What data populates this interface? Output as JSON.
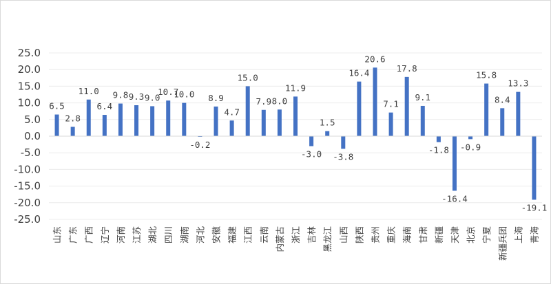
{
  "chart_data": {
    "type": "bar",
    "title": "",
    "xlabel": "",
    "ylabel": "",
    "ylim": [
      -25,
      25
    ],
    "y_ticks": [
      "25.0",
      "20.0",
      "15.0",
      "10.0",
      "5.0",
      "0.0",
      "-5.0",
      "-10.0",
      "-15.0",
      "-20.0",
      "-25.0"
    ],
    "grid": true,
    "bar_color": "#4472c4",
    "categories": [
      "山东",
      "广东",
      "广西",
      "辽宁",
      "河南",
      "江苏",
      "湖北",
      "四川",
      "湖南",
      "河北",
      "安徽",
      "福建",
      "江西",
      "云南",
      "内蒙古",
      "浙江",
      "吉林",
      "黑龙江",
      "山西",
      "陕西",
      "贵州",
      "重庆",
      "海南",
      "甘肃",
      "新疆",
      "天津",
      "北京",
      "宁夏",
      "新疆兵团",
      "上海",
      "青海"
    ],
    "values": [
      6.5,
      2.8,
      11.0,
      6.4,
      9.8,
      9.3,
      9.0,
      10.7,
      10.0,
      -0.2,
      8.9,
      4.7,
      15.0,
      7.9,
      8.0,
      11.9,
      -3.0,
      1.5,
      -3.8,
      16.4,
      20.6,
      7.1,
      17.8,
      9.1,
      -1.8,
      -16.4,
      -0.9,
      15.8,
      8.4,
      13.3,
      -19.1
    ],
    "data_labels": [
      "6.5",
      "2.8",
      "11.0",
      "6.4",
      "9.8",
      "9.3",
      "9.0",
      "10.7",
      "10.0",
      "-0.2",
      "8.9",
      "4.7",
      "15.0",
      "7.9",
      "8.0",
      "11.9",
      "-3.0",
      "1.5",
      "-3.8",
      "16.4",
      "20.6",
      "7.1",
      "17.8",
      "9.1",
      "-1.8",
      "-16.4",
      "-0.9",
      "15.8",
      "8.4",
      "13.3",
      "-19.1"
    ]
  }
}
